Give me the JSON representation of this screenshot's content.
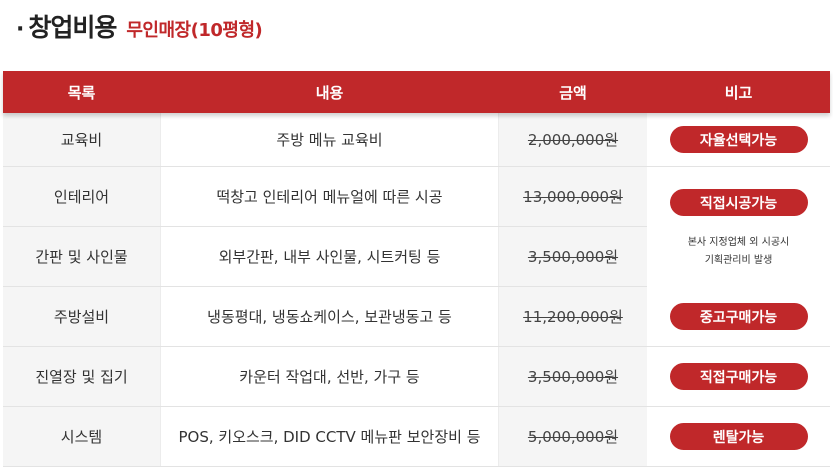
{
  "header": {
    "bullet": "·",
    "title": "창업비용",
    "subtitle": "무인매장(10평형)"
  },
  "table": {
    "columns": [
      "목록",
      "내용",
      "금액",
      "비고"
    ],
    "rows": [
      {
        "category": "교육비",
        "content": "주방 메뉴 교육비",
        "price": "2,000,000원",
        "badge": "자율선택가능"
      },
      {
        "category": "인테리어",
        "content": "떡창고 인테리어 메뉴얼에 따른 시공",
        "price": "13,000,000원",
        "badge": ""
      },
      {
        "category": "간판 및 사인물",
        "content": "외부간판, 내부 사인물, 시트커팅 등",
        "price": "3,500,000원",
        "badge": ""
      },
      {
        "category": "주방설비",
        "content": "냉동평대, 냉동쇼케이스, 보관냉동고 등",
        "price": "11,200,000원",
        "badge": "중고구매가능"
      },
      {
        "category": "진열장 및 집기",
        "content": "카운터 작업대, 선반, 가구 등",
        "price": "3,500,000원",
        "badge": "직접구매가능"
      },
      {
        "category": "시스템",
        "content": "POS, 키오스크, DID CCTV 메뉴판 보안장비 등",
        "price": "5,000,000원",
        "badge": "렌탈가능"
      }
    ],
    "merged_note": {
      "badge": "직접시공가능",
      "line1": "본사 지정업체 외 시공시",
      "line2": "기획관리비 발생"
    }
  },
  "colors": {
    "accent": "#c0282a",
    "shade": "#f5f5f5"
  }
}
